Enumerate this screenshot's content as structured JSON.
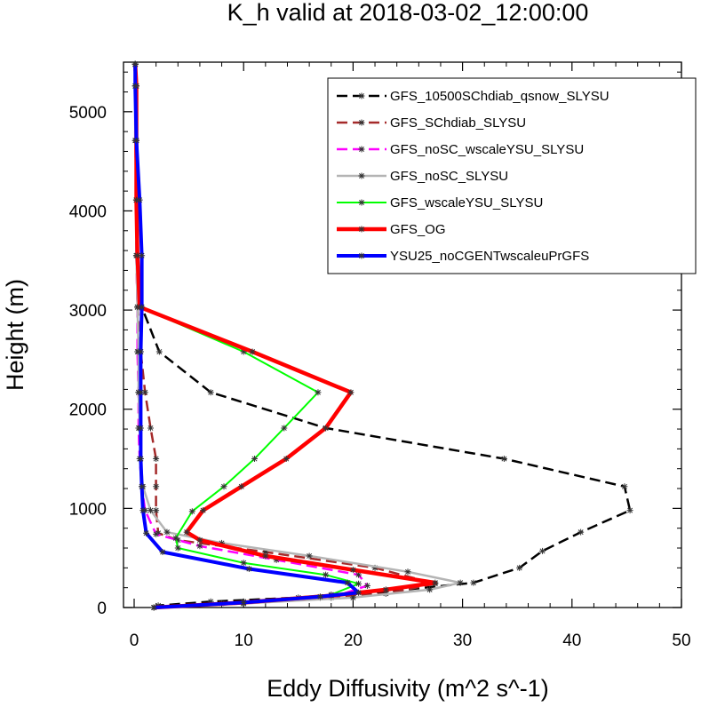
{
  "chart_data": {
    "type": "line",
    "title": "K_h valid at 2018-03-02_12:00:00",
    "xlabel": "Eddy Diffusivity (m^2 s^-1)",
    "ylabel": "Height (m)",
    "xlim": [
      0,
      50
    ],
    "ylim": [
      0,
      5500
    ],
    "xticks": [
      0,
      10,
      20,
      30,
      40,
      50
    ],
    "yticks": [
      0,
      1000,
      2000,
      3000,
      4000,
      5000
    ],
    "grid": false,
    "legend_position": "top-right",
    "series": [
      {
        "name": "GFS_10500SChdiab_qsnow_SLYSU",
        "color": "#000000",
        "dash": "dashed",
        "width": 2.5,
        "points": [
          [
            1.8,
            0
          ],
          [
            2.2,
            20
          ],
          [
            7,
            60
          ],
          [
            15,
            100
          ],
          [
            23,
            160
          ],
          [
            31,
            250
          ],
          [
            35.2,
            400
          ],
          [
            37.3,
            570
          ],
          [
            40.8,
            760
          ],
          [
            45.3,
            980
          ],
          [
            44.8,
            1220
          ],
          [
            33.8,
            1500
          ],
          [
            17.5,
            1810
          ],
          [
            7,
            2170
          ],
          [
            2.3,
            2580
          ],
          [
            0.7,
            3030
          ],
          [
            0.3,
            3550
          ],
          [
            0.2,
            4110
          ],
          [
            0.2,
            4710
          ],
          [
            0.2,
            5260
          ],
          [
            0.1,
            5480
          ]
        ]
      },
      {
        "name": "GFS_SChdiab_SLYSU",
        "color": "#a52a2a",
        "dash": "dashed",
        "width": 2.5,
        "points": [
          [
            1.8,
            0
          ],
          [
            8,
            40
          ],
          [
            17,
            100
          ],
          [
            23,
            140
          ],
          [
            27.5,
            240
          ],
          [
            22,
            400
          ],
          [
            12,
            560
          ],
          [
            4,
            680
          ],
          [
            2.2,
            750
          ],
          [
            2,
            980
          ],
          [
            2,
            1220
          ],
          [
            2,
            1500
          ],
          [
            1.5,
            1810
          ],
          [
            1,
            2170
          ],
          [
            0.6,
            2580
          ],
          [
            0.3,
            3030
          ],
          [
            0.2,
            3550
          ],
          [
            0.2,
            4110
          ],
          [
            0.2,
            4710
          ],
          [
            0.2,
            5260
          ],
          [
            0.1,
            5480
          ]
        ]
      },
      {
        "name": "GFS_noSC_wscaleYSU_SLYSU",
        "color": "#ff00ff",
        "dash": "dashed",
        "width": 2.5,
        "points": [
          [
            1.8,
            0
          ],
          [
            10,
            40
          ],
          [
            18,
            100
          ],
          [
            21.3,
            220
          ],
          [
            20.5,
            330
          ],
          [
            13,
            480
          ],
          [
            6,
            620
          ],
          [
            2,
            740
          ],
          [
            1,
            980
          ],
          [
            0.7,
            1220
          ],
          [
            0.5,
            1500
          ],
          [
            0.4,
            1810
          ],
          [
            0.4,
            2170
          ],
          [
            0.3,
            2580
          ],
          [
            0.3,
            3030
          ],
          [
            0.2,
            3550
          ],
          [
            0.2,
            4110
          ],
          [
            0.1,
            4710
          ],
          [
            0.1,
            5260
          ],
          [
            0.1,
            5480
          ]
        ]
      },
      {
        "name": "GFS_noSC_SLYSU",
        "color": "#b4b4b4",
        "dash": "solid",
        "width": 2.5,
        "points": [
          [
            1.8,
            0
          ],
          [
            10,
            40
          ],
          [
            20,
            100
          ],
          [
            27,
            180
          ],
          [
            29.8,
            250
          ],
          [
            25,
            360
          ],
          [
            16,
            520
          ],
          [
            8,
            650
          ],
          [
            3,
            760
          ],
          [
            1.5,
            980
          ],
          [
            0.8,
            1220
          ],
          [
            0.6,
            1500
          ],
          [
            0.5,
            1810
          ],
          [
            0.4,
            2170
          ],
          [
            0.4,
            2580
          ],
          [
            0.3,
            3030
          ],
          [
            0.2,
            3550
          ],
          [
            0.2,
            4110
          ],
          [
            0.1,
            4710
          ],
          [
            0.1,
            5260
          ],
          [
            0.1,
            5480
          ]
        ]
      },
      {
        "name": "GFS_wscaleYSU_SLYSU",
        "color": "#00ff00",
        "dash": "solid",
        "width": 2,
        "points": [
          [
            1.8,
            0
          ],
          [
            10,
            60
          ],
          [
            18,
            130
          ],
          [
            20.5,
            240
          ],
          [
            17.5,
            330
          ],
          [
            10,
            450
          ],
          [
            4,
            600
          ],
          [
            3.8,
            700
          ],
          [
            5.3,
            970
          ],
          [
            8.2,
            1220
          ],
          [
            11,
            1500
          ],
          [
            13.7,
            1810
          ],
          [
            16.8,
            2170
          ],
          [
            10,
            2580
          ],
          [
            0.5,
            3030
          ],
          [
            0.3,
            3550
          ],
          [
            0.2,
            4110
          ],
          [
            0.2,
            4710
          ],
          [
            0.2,
            5260
          ],
          [
            0.1,
            5480
          ]
        ]
      },
      {
        "name": "GFS_OG",
        "color": "#ff0000",
        "dash": "solid",
        "width": 4.5,
        "points": [
          [
            1.8,
            0
          ],
          [
            10,
            50
          ],
          [
            18,
            120
          ],
          [
            23,
            180
          ],
          [
            27.5,
            250
          ],
          [
            20,
            380
          ],
          [
            12,
            520
          ],
          [
            6,
            680
          ],
          [
            4.8,
            760
          ],
          [
            6.3,
            980
          ],
          [
            9.8,
            1220
          ],
          [
            13.9,
            1500
          ],
          [
            17.5,
            1810
          ],
          [
            19.8,
            2170
          ],
          [
            10.8,
            2580
          ],
          [
            0.5,
            3030
          ],
          [
            0.3,
            3550
          ],
          [
            0.2,
            4110
          ],
          [
            0.2,
            4710
          ],
          [
            0.2,
            5260
          ],
          [
            0.1,
            5480
          ]
        ]
      },
      {
        "name": "YSU25_noCGENTwscaleuPrGFS",
        "color": "#0000ff",
        "dash": "solid",
        "width": 4,
        "points": [
          [
            1.8,
            0
          ],
          [
            10,
            50
          ],
          [
            17,
            110
          ],
          [
            20.5,
            150
          ],
          [
            19.5,
            250
          ],
          [
            10.5,
            390
          ],
          [
            2.6,
            560
          ],
          [
            1.1,
            750
          ],
          [
            0.8,
            980
          ],
          [
            0.7,
            1220
          ],
          [
            0.6,
            1500
          ],
          [
            0.6,
            1810
          ],
          [
            0.6,
            2170
          ],
          [
            0.6,
            2580
          ],
          [
            0.7,
            3030
          ],
          [
            0.7,
            3550
          ],
          [
            0.5,
            4110
          ],
          [
            0.2,
            4710
          ],
          [
            0.1,
            5260
          ],
          [
            0.1,
            5480
          ]
        ]
      }
    ]
  }
}
